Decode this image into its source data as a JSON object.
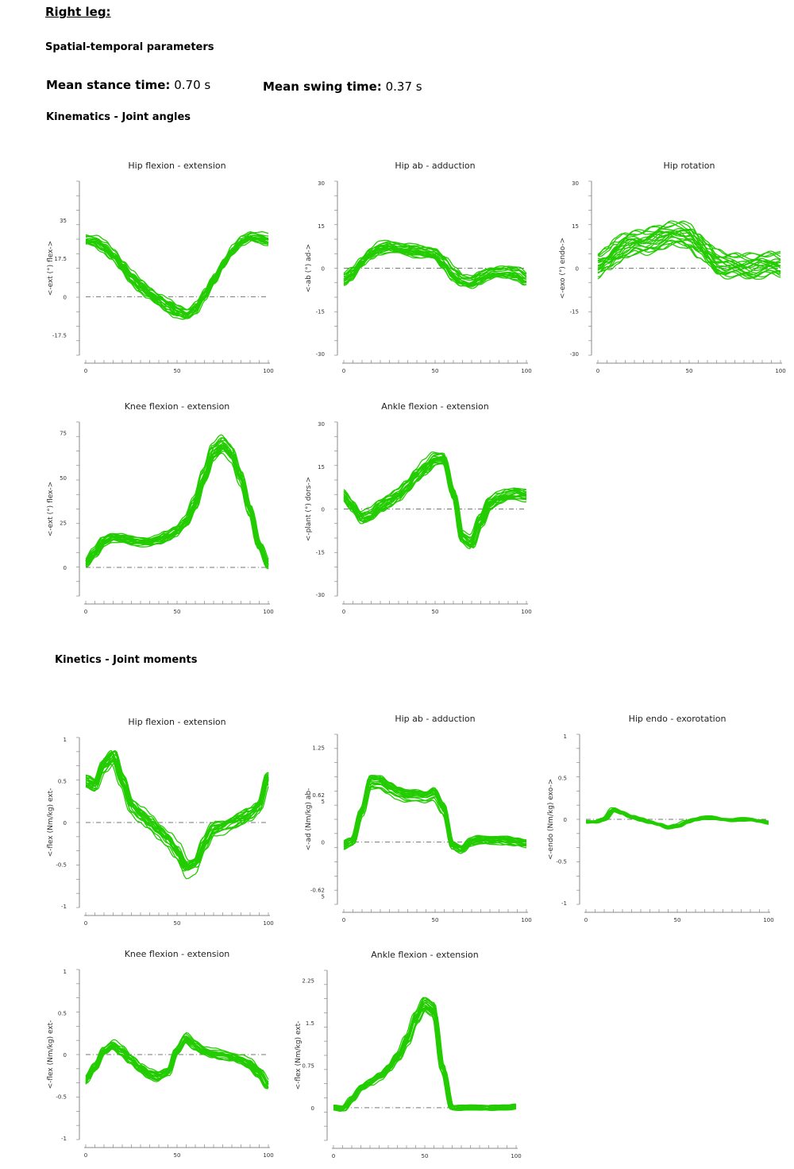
{
  "header": {
    "leg": "Right leg:",
    "spatial_temporal": "Spatial-temporal  parameters",
    "stance_label": "Mean stance time:",
    "stance_value": "0.70 s",
    "swing_label": "Mean swing time:",
    "swing_value": "0.37 s",
    "kinematics": "Kinematics  - Joint angles",
    "kinetics": "Kinetics  - Joint moments"
  },
  "colors": {
    "curve": "#22cc00",
    "zero_line": "#777777",
    "axis": "#888888"
  },
  "chart_data": [
    {
      "id": "hip-flex-angle",
      "type": "line",
      "title": "Hip flexion - extension",
      "ylabel": "<-ext    (°)    flex->",
      "xlim": [
        0,
        100
      ],
      "ylim": [
        -26,
        52
      ],
      "xticks": [
        0,
        50,
        100
      ],
      "yticks": [
        -17.5,
        0,
        17.5,
        35
      ],
      "ytick_labels": [
        "-17.5",
        "0",
        "17.5",
        "35"
      ],
      "x": [
        0,
        5,
        10,
        15,
        20,
        25,
        30,
        35,
        40,
        45,
        50,
        55,
        60,
        65,
        70,
        75,
        80,
        85,
        90,
        95,
        100
      ],
      "mean": [
        26,
        25.5,
        23,
        19,
        14,
        9,
        5,
        1.5,
        -1.5,
        -4,
        -6.5,
        -8,
        -5,
        1,
        8,
        15,
        21,
        25.5,
        27.5,
        27,
        26
      ],
      "spread": 2.5,
      "curves": 20
    },
    {
      "id": "hip-ab-angle",
      "type": "line",
      "title": "Hip ab - adduction",
      "ylabel": "<-ab    (°)    ad->",
      "xlim": [
        0,
        100
      ],
      "ylim": [
        -30,
        30
      ],
      "xticks": [
        0,
        50,
        100
      ],
      "yticks": [
        -30,
        -15,
        0,
        15,
        30
      ],
      "ytick_labels": [
        "-30",
        "-15",
        "0",
        "15",
        "30"
      ],
      "x": [
        0,
        5,
        10,
        15,
        20,
        25,
        30,
        35,
        40,
        45,
        50,
        55,
        60,
        65,
        70,
        75,
        80,
        85,
        90,
        95,
        100
      ],
      "mean": [
        -4,
        -2,
        2,
        5,
        7,
        7.5,
        7,
        6.5,
        6,
        5.5,
        5,
        2,
        -2,
        -4.5,
        -5,
        -3.5,
        -2,
        -1.5,
        -1.5,
        -2,
        -4
      ],
      "spread": 2,
      "curves": 20
    },
    {
      "id": "hip-rot-angle",
      "type": "line",
      "title": "Hip rotation",
      "ylabel": "<-exo    (°)    endo->",
      "xlim": [
        0,
        100
      ],
      "ylim": [
        -30,
        30
      ],
      "xticks": [
        0,
        50,
        100
      ],
      "yticks": [
        -30,
        -15,
        0,
        15,
        30
      ],
      "ytick_labels": [
        "-30",
        "-15",
        "0",
        "15",
        "30"
      ],
      "x": [
        0,
        5,
        10,
        15,
        20,
        25,
        30,
        35,
        40,
        45,
        50,
        55,
        60,
        65,
        70,
        75,
        80,
        85,
        90,
        95,
        100
      ],
      "mean": [
        1,
        3,
        6,
        8,
        9,
        9,
        10,
        11,
        12,
        12,
        11,
        8,
        5,
        2,
        1,
        1,
        0.5,
        0.5,
        1,
        1.5,
        1
      ],
      "spread": 4,
      "curves": 22
    },
    {
      "id": "knee-flex-angle",
      "type": "line",
      "title": "Knee flexion - extension",
      "ylabel": "<-ext    (°)    flex->",
      "xlim": [
        0,
        100
      ],
      "ylim": [
        -15,
        80
      ],
      "xticks": [
        0,
        50,
        100
      ],
      "yticks": [
        0,
        25,
        50,
        75
      ],
      "ytick_labels": [
        "0",
        "25",
        "50",
        "75"
      ],
      "x": [
        0,
        5,
        10,
        15,
        20,
        25,
        30,
        35,
        40,
        45,
        50,
        55,
        60,
        65,
        70,
        75,
        80,
        85,
        90,
        95,
        100
      ],
      "mean": [
        2,
        8,
        14,
        16.5,
        16,
        14.5,
        14,
        14,
        15,
        17,
        20,
        25,
        35,
        50,
        64,
        68,
        63,
        50,
        32,
        12,
        1
      ],
      "spread": 2,
      "curves": 20
    },
    {
      "id": "ankle-flex-angle",
      "type": "line",
      "title": "Ankle flexion - extension",
      "ylabel": "<-plant    (°)    dors->",
      "xlim": [
        0,
        100
      ],
      "ylim": [
        -30,
        30
      ],
      "xticks": [
        0,
        50,
        100
      ],
      "yticks": [
        -30,
        -15,
        0,
        15,
        30
      ],
      "ytick_labels": [
        "-30",
        "-15",
        "0",
        "15",
        "30"
      ],
      "x": [
        0,
        5,
        10,
        15,
        20,
        25,
        30,
        35,
        40,
        45,
        50,
        55,
        60,
        65,
        70,
        75,
        80,
        85,
        90,
        95,
        100
      ],
      "mean": [
        5,
        1,
        -3,
        -2,
        1,
        3,
        5,
        8,
        12,
        15,
        18,
        18,
        6,
        -10,
        -12,
        -4,
        2,
        4,
        5,
        5.5,
        5
      ],
      "spread": 2,
      "curves": 20
    },
    {
      "id": "hip-flex-moment",
      "type": "line",
      "title": "Hip flexion - extension",
      "ylabel": "<-flex    (Nm/kg)    ext-",
      "xlim": [
        0,
        100
      ],
      "ylim": [
        -1,
        1
      ],
      "xticks": [
        0,
        50,
        100
      ],
      "yticks": [
        -1,
        -0.5,
        0,
        0.5,
        1
      ],
      "ytick_labels": [
        "-1",
        "-0.5",
        "0",
        "0.5",
        "1"
      ],
      "x": [
        0,
        5,
        10,
        15,
        20,
        25,
        30,
        35,
        40,
        45,
        50,
        55,
        60,
        65,
        70,
        75,
        80,
        85,
        90,
        95,
        100
      ],
      "mean": [
        0.5,
        0.45,
        0.7,
        0.8,
        0.5,
        0.2,
        0.1,
        0,
        -0.1,
        -0.2,
        -0.35,
        -0.55,
        -0.5,
        -0.25,
        -0.08,
        -0.05,
        0,
        0.05,
        0.1,
        0.2,
        0.55
      ],
      "spread": 0.08,
      "curves": 20
    },
    {
      "id": "hip-ab-moment",
      "type": "line",
      "title": "Hip ab - adduction",
      "ylabel": "<-ad    (Nm/kg)    ab-",
      "xlim": [
        0,
        100
      ],
      "ylim": [
        -0.8,
        1.4
      ],
      "xticks": [
        0,
        50,
        100
      ],
      "yticks": [
        -0.625,
        0,
        0.625,
        1.25
      ],
      "ytick_labels": [
        "-0.62\n5",
        "0",
        "0.62\n5",
        "1.25"
      ],
      "x": [
        0,
        5,
        10,
        15,
        20,
        25,
        30,
        35,
        40,
        45,
        50,
        55,
        60,
        65,
        70,
        75,
        80,
        85,
        90,
        95,
        100
      ],
      "mean": [
        -0.05,
        0,
        0.4,
        0.8,
        0.8,
        0.72,
        0.66,
        0.62,
        0.62,
        0.6,
        0.65,
        0.45,
        -0.05,
        -0.1,
        0,
        0.03,
        0.02,
        0.03,
        0.02,
        0,
        -0.02
      ],
      "spread": 0.05,
      "curves": 20
    },
    {
      "id": "hip-rot-moment",
      "type": "line",
      "title": "Hip endo - exorotation",
      "ylabel": "<-endo    (Nm/kg)    exo->",
      "xlim": [
        0,
        100
      ],
      "ylim": [
        -1,
        1
      ],
      "xticks": [
        0,
        50,
        100
      ],
      "yticks": [
        -1,
        -0.5,
        0,
        0.5,
        1
      ],
      "ytick_labels": [
        "-1",
        "-0.5",
        "0",
        "0.5",
        "1"
      ],
      "x": [
        0,
        5,
        10,
        15,
        20,
        25,
        30,
        35,
        40,
        45,
        50,
        55,
        60,
        65,
        70,
        75,
        80,
        85,
        90,
        95,
        100
      ],
      "mean": [
        -0.03,
        -0.03,
        0,
        0.12,
        0.08,
        0.03,
        0,
        -0.03,
        -0.06,
        -0.1,
        -0.08,
        -0.03,
        0,
        0.02,
        0.02,
        0,
        -0.01,
        0,
        0,
        -0.02,
        -0.04
      ],
      "spread": 0.02,
      "curves": 18
    },
    {
      "id": "knee-flex-moment",
      "type": "line",
      "title": "Knee flexion - extension",
      "ylabel": "<-flex    (Nm/kg)    ext-",
      "xlim": [
        0,
        100
      ],
      "ylim": [
        -1,
        1
      ],
      "xticks": [
        0,
        50,
        100
      ],
      "yticks": [
        -1,
        -0.5,
        0,
        0.5,
        1
      ],
      "ytick_labels": [
        "-1",
        "-0.5",
        "0",
        "0.5",
        "1"
      ],
      "x": [
        0,
        5,
        10,
        15,
        20,
        25,
        30,
        35,
        40,
        45,
        50,
        55,
        60,
        65,
        70,
        75,
        80,
        85,
        90,
        95,
        100
      ],
      "mean": [
        -0.3,
        -0.15,
        0.05,
        0.12,
        0.05,
        -0.05,
        -0.15,
        -0.22,
        -0.25,
        -0.2,
        0.05,
        0.2,
        0.12,
        0.05,
        0.02,
        0,
        -0.02,
        -0.05,
        -0.1,
        -0.2,
        -0.35
      ],
      "spread": 0.05,
      "curves": 20
    },
    {
      "id": "ankle-flex-moment",
      "type": "line",
      "title": "Ankle flexion - extension",
      "ylabel": "<-flex    (Nm/kg)    ext-",
      "xlim": [
        0,
        100
      ],
      "ylim": [
        -0.55,
        2.4
      ],
      "xticks": [
        0,
        50,
        100
      ],
      "yticks": [
        0,
        0.75,
        1.5,
        2.25
      ],
      "ytick_labels": [
        "0",
        "0.75",
        "1.5",
        "2.25"
      ],
      "x": [
        0,
        5,
        10,
        15,
        20,
        25,
        30,
        35,
        40,
        45,
        50,
        55,
        60,
        65,
        70,
        75,
        80,
        85,
        90,
        95,
        100
      ],
      "mean": [
        0,
        -0.02,
        0.15,
        0.35,
        0.45,
        0.55,
        0.7,
        0.9,
        1.2,
        1.6,
        1.85,
        1.75,
        0.7,
        0,
        0,
        0,
        0,
        0,
        0,
        0,
        0.02
      ],
      "spread": 0.05,
      "curves": 20
    }
  ]
}
